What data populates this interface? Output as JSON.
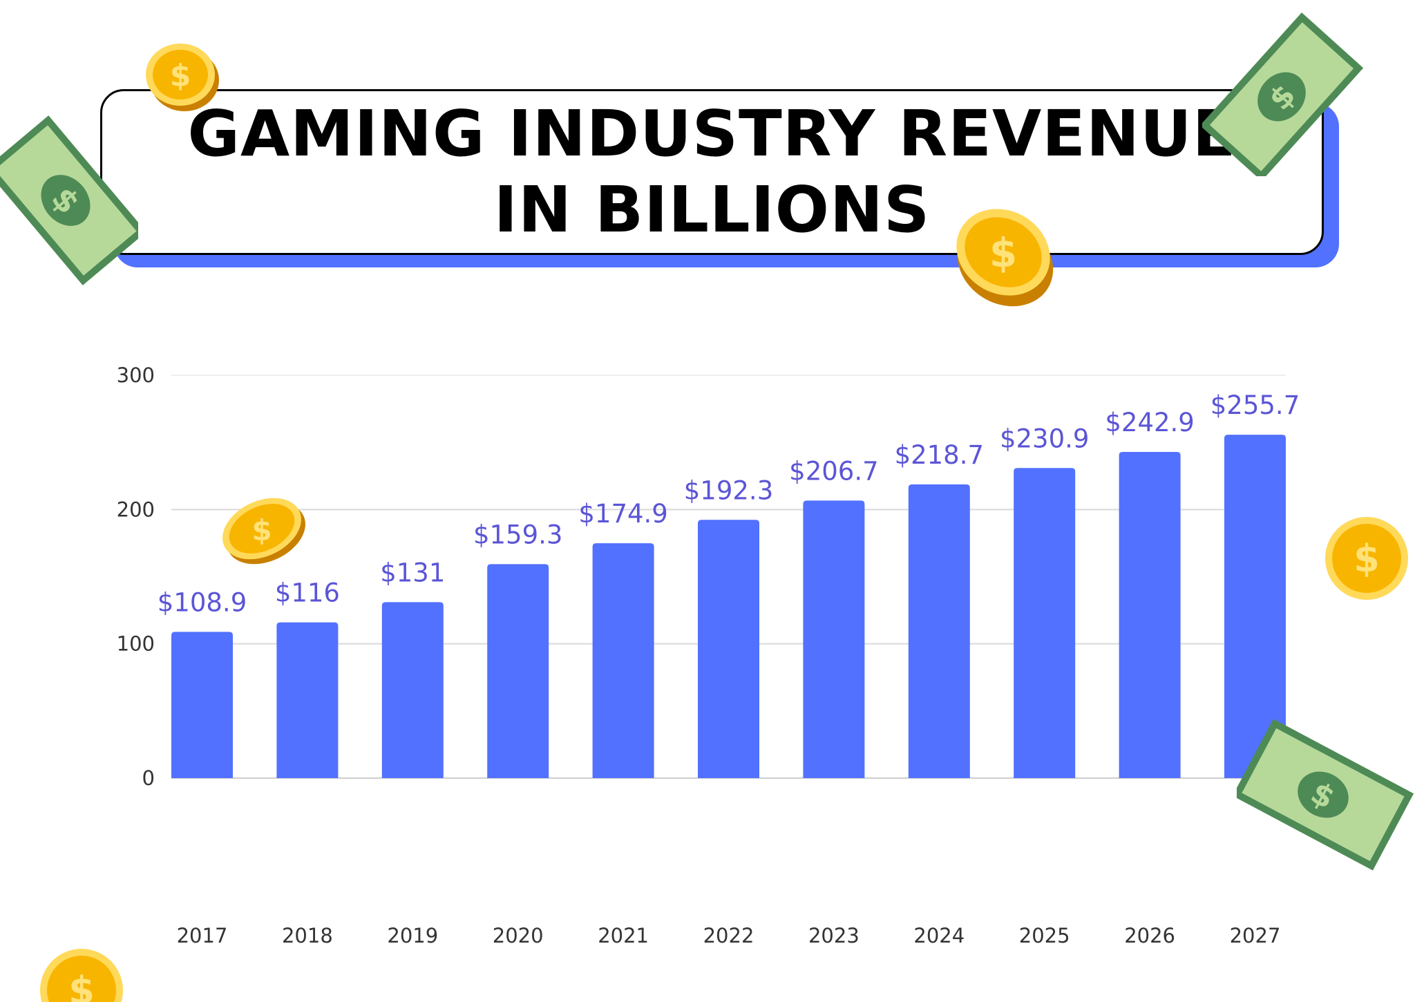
{
  "title": {
    "line1": "GAMING INDUSTRY REVENUE",
    "line2": "IN BILLIONS"
  },
  "colors": {
    "bar": "#5271ff",
    "data_label": "#5b55d6",
    "title_shadow": "#5271ff",
    "axis_text": "#333333",
    "grid": "#d9d9d9"
  },
  "decorations": [
    "coin-icon",
    "dollar-bill-icon"
  ],
  "chart_data": {
    "type": "bar",
    "title": "GAMING INDUSTRY REVENUE IN BILLIONS",
    "categories": [
      "2017",
      "2018",
      "2019",
      "2020",
      "2021",
      "2022",
      "2023",
      "2024",
      "2025",
      "2026",
      "2027"
    ],
    "values": [
      108.9,
      116,
      131,
      159.3,
      174.9,
      192.3,
      206.7,
      218.7,
      230.9,
      242.9,
      255.7
    ],
    "data_labels": [
      "$108.9",
      "$116",
      "$131",
      "$159.3",
      "$174.9",
      "$192.3",
      "$206.7",
      "$218.7",
      "$230.9",
      "$242.9",
      "$255.7"
    ],
    "yticks": [
      "0",
      "100",
      "200",
      "300"
    ],
    "ylim": [
      0,
      300
    ],
    "grid": true,
    "legend": "none"
  }
}
